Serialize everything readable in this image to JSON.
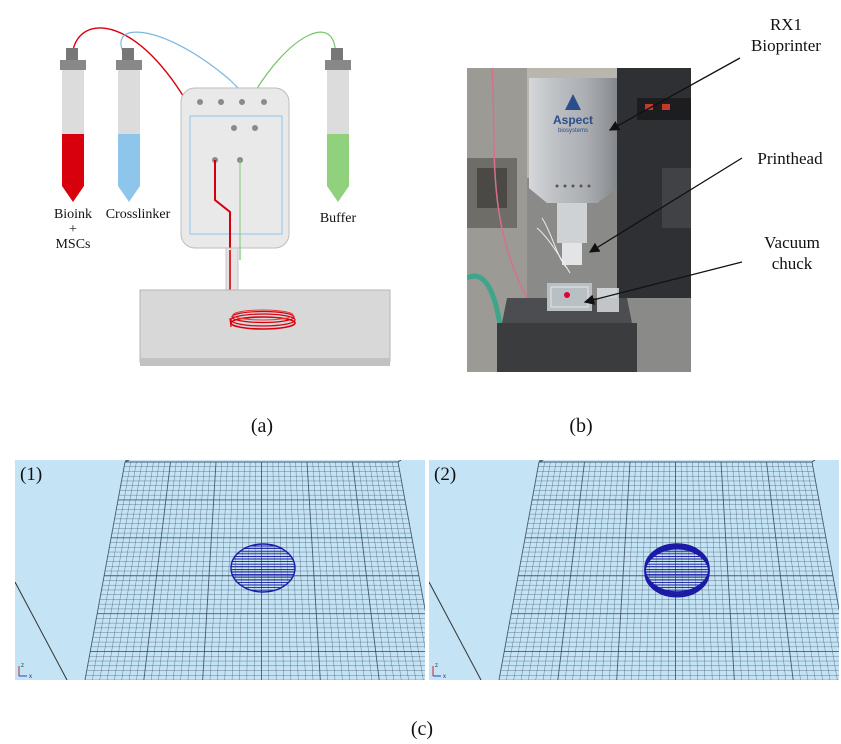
{
  "panel_a": {
    "tubes": [
      {
        "name": "bioink",
        "label_line1": "Bioink",
        "label_line2": "+",
        "label_line3": "MSCs",
        "color": "#d9000d"
      },
      {
        "name": "crosslinker",
        "label": "Crosslinker",
        "color": "#8ec5ea"
      },
      {
        "name": "buffer",
        "label": "Buffer",
        "color": "#8fd17d"
      }
    ],
    "caption": "(a)"
  },
  "panel_b": {
    "brand_line1": "Aspect",
    "brand_line2": "biosystems",
    "callouts": [
      {
        "line1": "RX1",
        "line2": "Bioprinter"
      },
      {
        "line1": "Printhead",
        "line2": ""
      },
      {
        "line1": "Vacuum",
        "line2": "chuck"
      }
    ],
    "caption": "(b)"
  },
  "panel_c": {
    "views": [
      {
        "label": "(1)"
      },
      {
        "label": "(2)"
      }
    ],
    "axis_z": "z",
    "axis_x": "x",
    "background_color": "#c4e4f5",
    "grid_color": "#3b4e60",
    "shape_color": "#1a1aa6",
    "caption": "(c)"
  }
}
